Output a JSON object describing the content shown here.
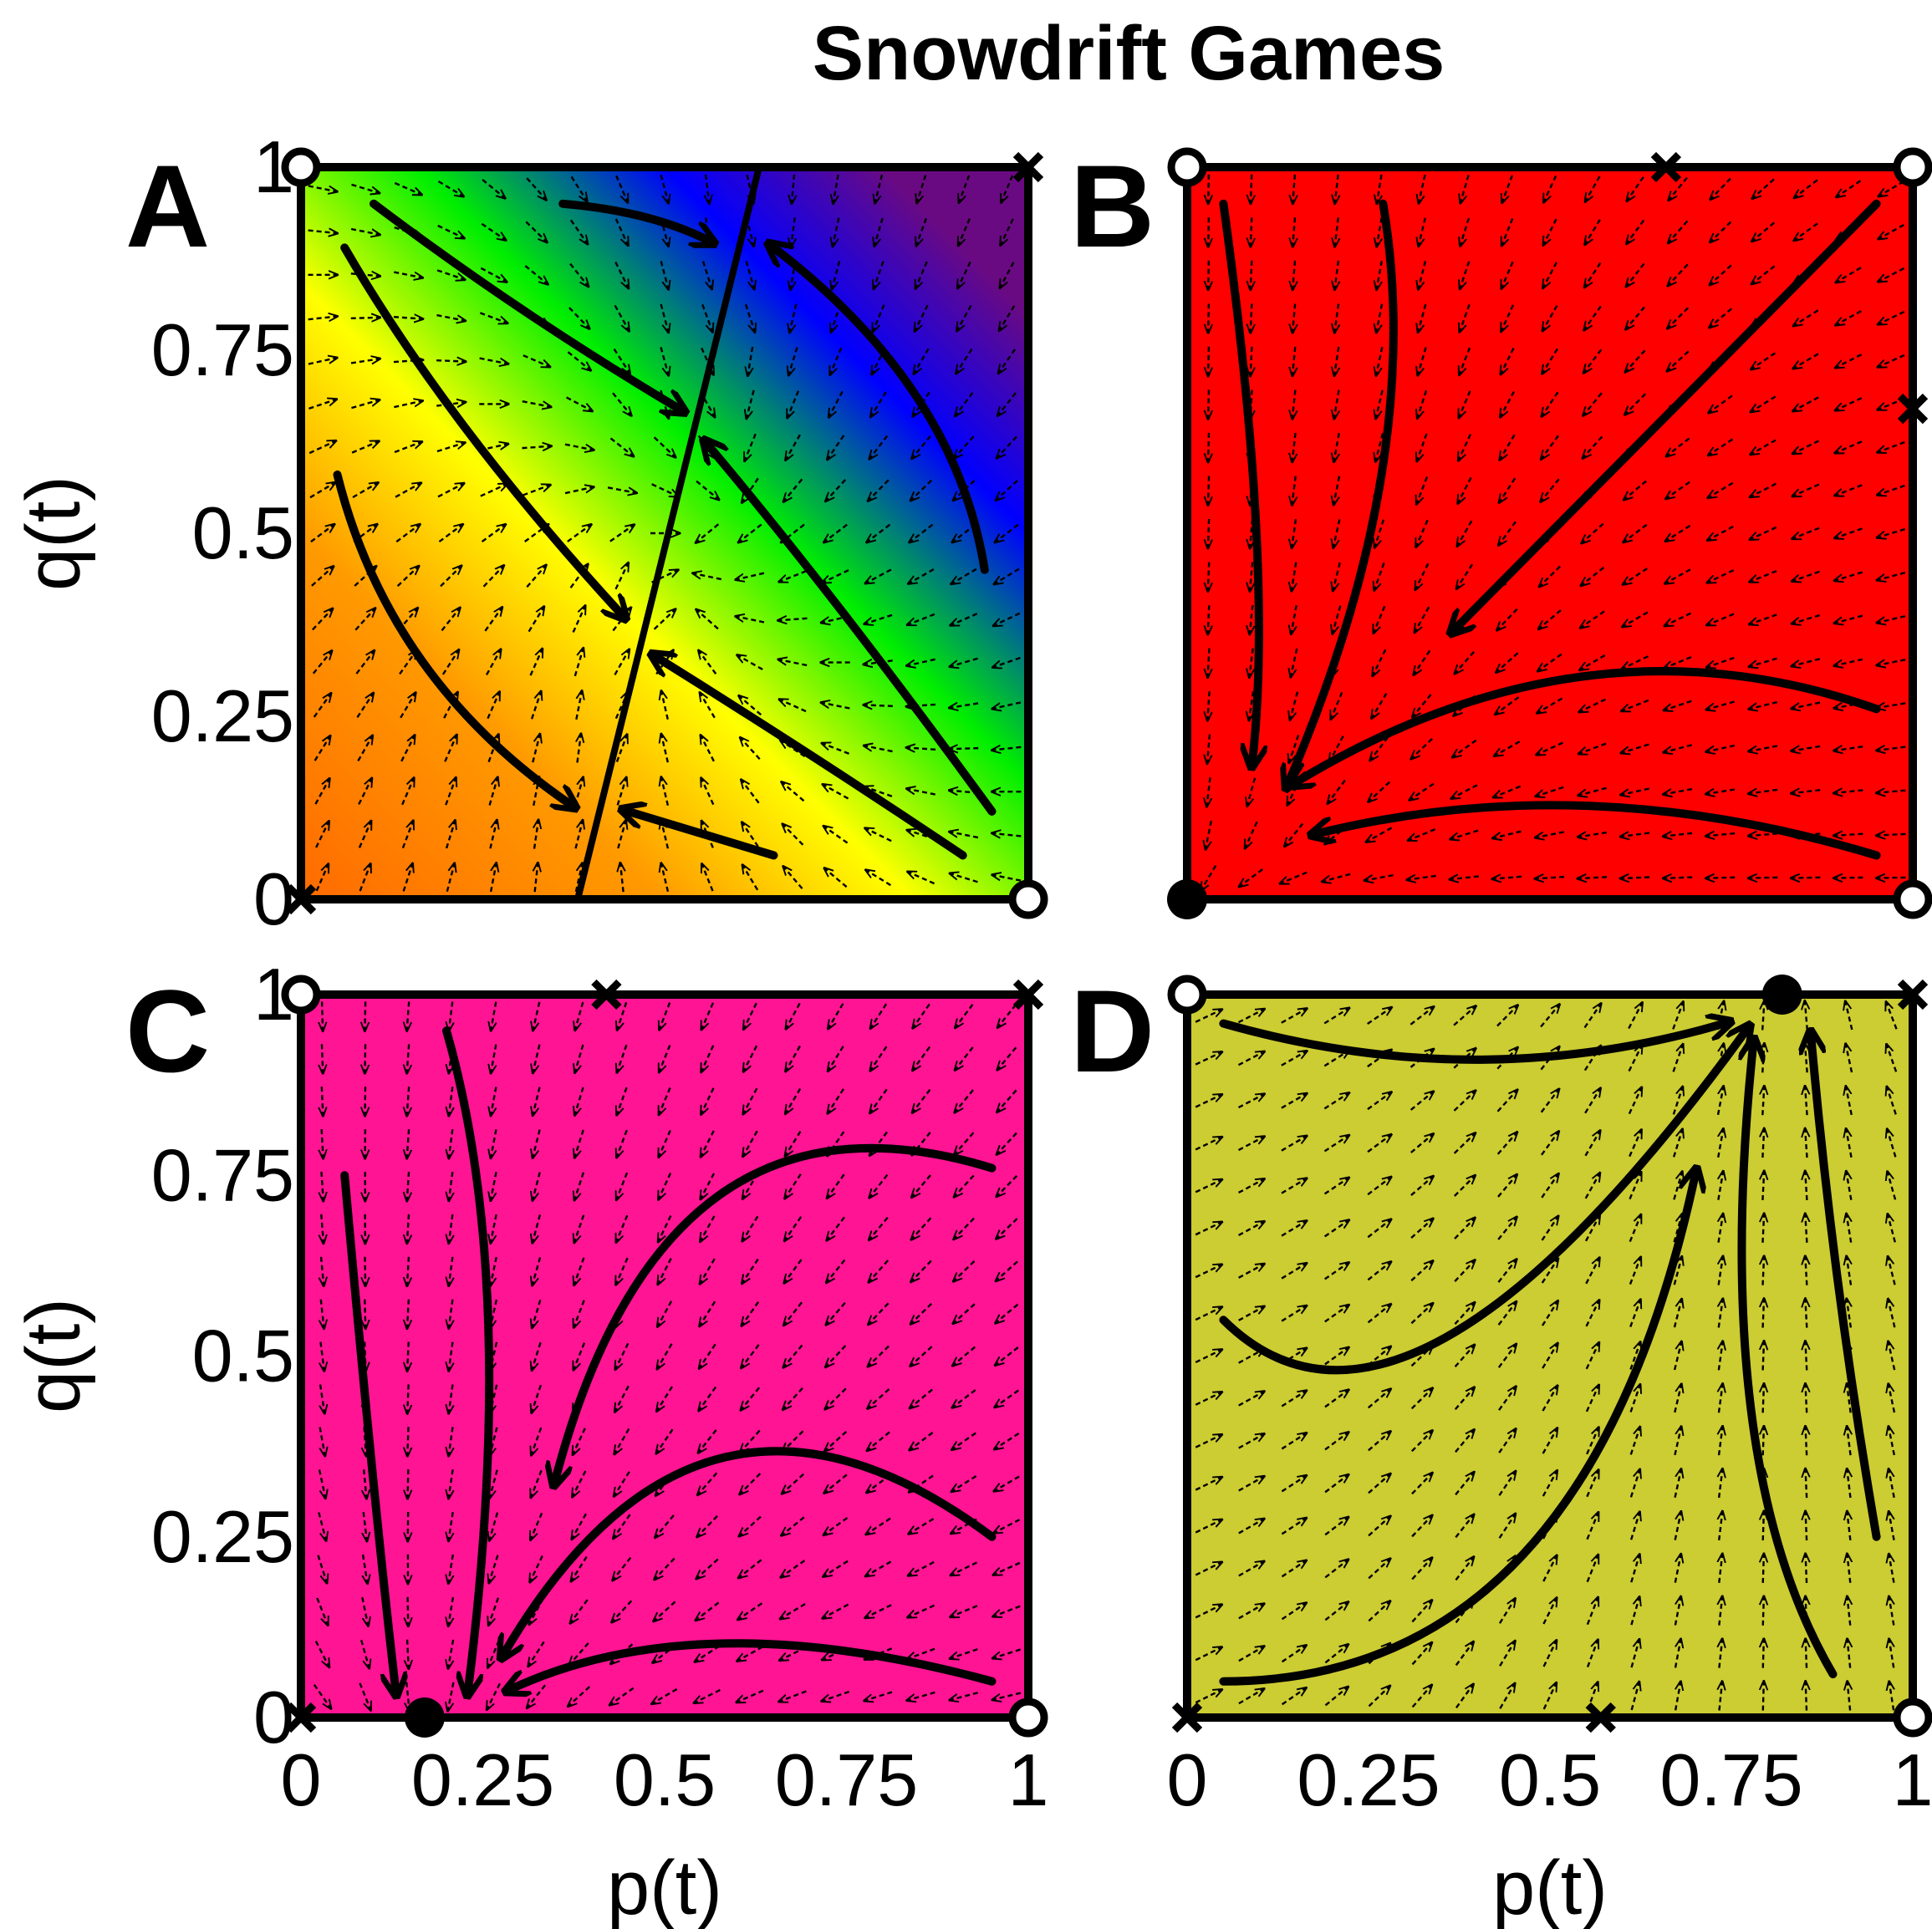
{
  "chart_data": {
    "type": "vector-field",
    "title": "Snowdrift Games",
    "colors": {
      "panel_A_gradient": [
        "#ff6a00",
        "#ff9a00",
        "#ffff00",
        "#00ee00",
        "#0000ff",
        "#6a0a82"
      ],
      "panel_B": "#ff0000",
      "panel_C": "#ff1493",
      "panel_D": "#cccc33",
      "ink": "#000000"
    },
    "panels": [
      {
        "label": "A",
        "xlabel": "",
        "ylabel": "q(t)",
        "xlim": [
          0,
          1
        ],
        "ylim": [
          0,
          1
        ],
        "xticks": [],
        "yticks": [
          "0",
          "0.25",
          "0.5",
          "0.75",
          "1"
        ],
        "unstable_points": [
          [
            0,
            1
          ],
          [
            1,
            0
          ]
        ],
        "saddle_points": [
          [
            0,
            0
          ],
          [
            1,
            1
          ]
        ],
        "stable_points": [],
        "separatrix": [
          [
            0.38,
            0
          ],
          [
            0.63,
            1
          ]
        ],
        "trajectories": [
          [
            [
              0.1,
              0.95
            ],
            [
              0.3,
              0.8
            ],
            [
              0.52,
              0.67
            ]
          ],
          [
            [
              0.06,
              0.89
            ],
            [
              0.2,
              0.65
            ],
            [
              0.44,
              0.39
            ]
          ],
          [
            [
              0.05,
              0.58
            ],
            [
              0.12,
              0.3
            ],
            [
              0.37,
              0.13
            ]
          ],
          [
            [
              0.36,
              0.95
            ],
            [
              0.48,
              0.94
            ],
            [
              0.56,
              0.9
            ]
          ],
          [
            [
              0.94,
              0.45
            ],
            [
              0.9,
              0.7
            ],
            [
              0.65,
              0.89
            ]
          ],
          [
            [
              0.95,
              0.12
            ],
            [
              0.73,
              0.42
            ],
            [
              0.56,
              0.62
            ]
          ],
          [
            [
              0.91,
              0.06
            ],
            [
              0.7,
              0.2
            ],
            [
              0.49,
              0.33
            ]
          ],
          [
            [
              0.65,
              0.06
            ],
            [
              0.55,
              0.09
            ],
            [
              0.45,
              0.12
            ]
          ]
        ]
      },
      {
        "label": "B",
        "xlabel": "",
        "ylabel": "",
        "xlim": [
          0,
          1
        ],
        "ylim": [
          0,
          1
        ],
        "xticks": [],
        "yticks": [],
        "unstable_points": [
          [
            0,
            1
          ],
          [
            1,
            1
          ],
          [
            1,
            0
          ]
        ],
        "saddle_points": [
          [
            0.66,
            1
          ],
          [
            1,
            0.67
          ]
        ],
        "stable_points": [
          [
            0,
            0
          ]
        ],
        "trajectories": [
          [
            [
              0.05,
              0.95
            ],
            [
              0.12,
              0.45
            ],
            [
              0.09,
              0.19
            ]
          ],
          [
            [
              0.27,
              0.95
            ],
            [
              0.33,
              0.6
            ],
            [
              0.14,
              0.16
            ]
          ],
          [
            [
              0.95,
              0.95
            ],
            [
              0.62,
              0.62
            ],
            [
              0.37,
              0.37
            ]
          ],
          [
            [
              0.95,
              0.26
            ],
            [
              0.55,
              0.4
            ],
            [
              0.15,
              0.16
            ]
          ],
          [
            [
              0.95,
              0.06
            ],
            [
              0.55,
              0.18
            ],
            [
              0.18,
              0.09
            ]
          ]
        ]
      },
      {
        "label": "C",
        "xlabel": "p(t)",
        "ylabel": "q(t)",
        "xlim": [
          0,
          1
        ],
        "ylim": [
          0,
          1
        ],
        "xticks": [
          "0",
          "0.25",
          "0.5",
          "0.75",
          "1"
        ],
        "yticks": [
          "0",
          "0.25",
          "0.5",
          "0.75",
          "1"
        ],
        "unstable_points": [
          [
            0,
            1
          ],
          [
            1,
            0
          ]
        ],
        "saddle_points": [
          [
            0,
            0
          ],
          [
            0.42,
            1
          ],
          [
            1,
            1
          ]
        ],
        "stable_points": [
          [
            0.17,
            0
          ]
        ],
        "trajectories": [
          [
            [
              0.06,
              0.75
            ],
            [
              0.1,
              0.3
            ],
            [
              0.13,
              0.04
            ]
          ],
          [
            [
              0.2,
              0.95
            ],
            [
              0.3,
              0.6
            ],
            [
              0.23,
              0.04
            ]
          ],
          [
            [
              0.95,
              0.76
            ],
            [
              0.5,
              0.9
            ],
            [
              0.35,
              0.33
            ]
          ],
          [
            [
              0.95,
              0.25
            ],
            [
              0.55,
              0.55
            ],
            [
              0.28,
              0.09
            ]
          ],
          [
            [
              0.95,
              0.05
            ],
            [
              0.55,
              0.16
            ],
            [
              0.29,
              0.04
            ]
          ]
        ]
      },
      {
        "label": "D",
        "xlabel": "p(t)",
        "ylabel": "",
        "xlim": [
          0,
          1
        ],
        "ylim": [
          0,
          1
        ],
        "xticks": [
          "0",
          "0.25",
          "0.5",
          "0.75",
          "1"
        ],
        "yticks": [],
        "unstable_points": [
          [
            0,
            1
          ],
          [
            1,
            0
          ]
        ],
        "saddle_points": [
          [
            0,
            0
          ],
          [
            0.57,
            0
          ],
          [
            1,
            1
          ]
        ],
        "stable_points": [
          [
            0.82,
            1
          ]
        ],
        "trajectories": [
          [
            [
              0.05,
              0.96
            ],
            [
              0.4,
              0.86
            ],
            [
              0.74,
              0.96
            ]
          ],
          [
            [
              0.05,
              0.55
            ],
            [
              0.3,
              0.3
            ],
            [
              0.77,
              0.95
            ]
          ],
          [
            [
              0.05,
              0.05
            ],
            [
              0.55,
              0.05
            ],
            [
              0.7,
              0.75
            ]
          ],
          [
            [
              0.89,
              0.06
            ],
            [
              0.72,
              0.35
            ],
            [
              0.78,
              0.93
            ]
          ],
          [
            [
              0.95,
              0.25
            ],
            [
              0.89,
              0.6
            ],
            [
              0.86,
              0.94
            ]
          ]
        ]
      }
    ]
  }
}
